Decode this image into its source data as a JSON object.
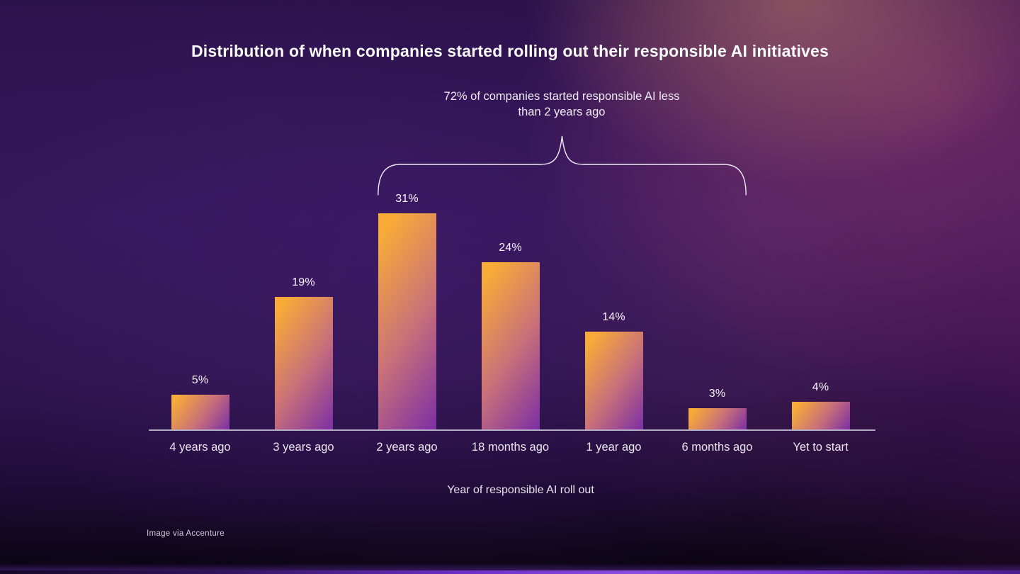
{
  "page": {
    "title": "Distribution of when companies started rolling out their responsible AI initiatives",
    "footer_credit": "Image via Accenture"
  },
  "annotation": {
    "line1": "72% of companies started responsible AI less",
    "line2": "than 2 years ago"
  },
  "chart_data": {
    "type": "bar",
    "title": "Distribution of when companies started rolling out their responsible AI initiatives",
    "categories": [
      "4 years ago",
      "3 years ago",
      "2 years ago",
      "18 months ago",
      "1 year ago",
      "6 months ago",
      "Yet to start"
    ],
    "values": [
      5,
      19,
      31,
      24,
      14,
      3,
      4
    ],
    "value_labels": [
      "5%",
      "19%",
      "31%",
      "24%",
      "14%",
      "3%",
      "4%"
    ],
    "xlabel": "Year of responsible AI roll out",
    "ylabel": "",
    "ylim": [
      0,
      33
    ],
    "grid": false,
    "legend": false,
    "annotation": "72% of companies started responsible AI less than 2 years ago",
    "annotation_brace_from": "2 years ago",
    "annotation_brace_to": "6 months ago",
    "bar_gradient_top": "#f8ac37",
    "bar_gradient_mid": "#c9707a",
    "bar_gradient_bottom": "#7b2fa5"
  },
  "colors": {
    "text": "#f3eef8",
    "axis_line": "#b5adc6",
    "bar_orange": "#f8ac37",
    "bar_purple": "#7b2fa5",
    "brace_line": "#f0eaf6",
    "bottom_stripe_accent": "#8a4ede"
  }
}
